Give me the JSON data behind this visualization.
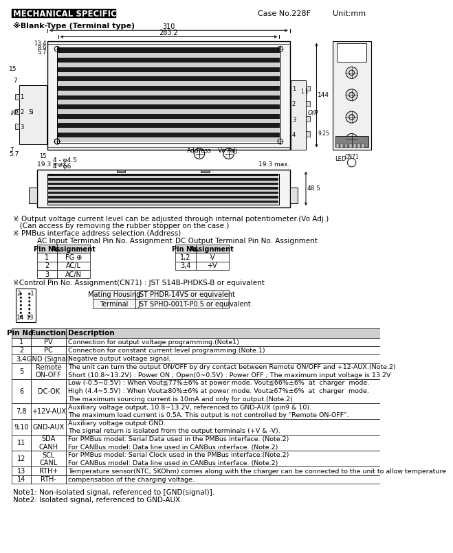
{
  "title": "MECHANICAL SPECIFICATION",
  "case_no": "Case No.228F",
  "unit": "Unit:mm",
  "blank_type": "※Blank-Type (Terminal type)",
  "notes": [
    "※ Output voltage current level can be adjusted through internal potentiometer.(Vo Adj.)",
    "   (Can access by removing the rubber stopper on the case.)",
    "※ PMBus interface address selection.(Address)"
  ],
  "ac_table_title": "AC Input Terminal Pin No. Assignment",
  "ac_table": [
    [
      "Pin No.",
      "Assignment"
    ],
    [
      "1",
      "FG ⊕"
    ],
    [
      "2",
      "AC/L"
    ],
    [
      "3",
      "AC/N"
    ]
  ],
  "dc_table_title": "DC Output Terminal Pin No. Assignment",
  "dc_table": [
    [
      "Pin No.",
      "Assignment"
    ],
    [
      "1,2",
      "-V"
    ],
    [
      "3,4",
      "+V"
    ]
  ],
  "control_note": "※Control Pin No. Assignment(CN71) : JST S14B-PHDKS-B or equivalent",
  "mating_table": [
    [
      "Mating Housing",
      "JST PHDR-14VS or equivalent"
    ],
    [
      "Terminal",
      "JST SPHD-001T-P0.5 or equivalent"
    ]
  ],
  "pin_table_headers": [
    "Pin No.",
    "Function",
    "Description"
  ],
  "pin_table": [
    [
      "1",
      "PV",
      "Connection for output voltage programming.(Note1)"
    ],
    [
      "2",
      "PC",
      "Connection for constant current level programming.(Note.1)"
    ],
    [
      "3,4",
      "GND (Signal)",
      "Negative output voltage signal."
    ],
    [
      "5",
      "Remote\nON-OFF",
      "The unit can turn the output ON/OFF by dry contact between Remote ON/OFF and +12-AUX.(Note.2)\nShort (10.8~13.2V) : Power ON ; Open(0~0.5V) : Power OFF ; The maximum input voltage is 13.2V"
    ],
    [
      "6",
      "DC-OK",
      "Low (-0.5~0.5V) : When Vout≦77%±6% at power mode. Vout≦66%±6%  at  charger  mode.\nHigh (4.4~5.5V) : When Vout≥80%±6% at power mode. Vout≥67%±6%  at  charger  mode.\nThe maximum sourcing current is 10mA and only for output.(Note.2)"
    ],
    [
      "7,8",
      "+12V-AUX",
      "Auxiliary voltage output, 10.8~13.2V, referenced to GND-AUX (pin9 & 10).\nThe maximum load current is 0.5A. This output is not controlled by \"Remote ON-OFF\"."
    ],
    [
      "9,10",
      "GND-AUX",
      "Auxiliary voltage output GND.\nThe signal return is isolated from the output terminals (+V & -V)."
    ],
    [
      "11",
      "SDA\nCANH",
      "For PMBus model: Serial Data used in the PMBus interface. (Note.2)\nFor CANBus model: Data line used in CANBus interface. (Note.2)"
    ],
    [
      "12",
      "SCL\nCANL",
      "For PMBus model: Serial Clock used in the PMBus interface.(Note.2)\nFor CANBus model: Data line used in CANBus interface. (Note.2)"
    ],
    [
      "13",
      "RTH+",
      "Temperature sensor(NTC, 5KOhm) comes along with the charger can be connected to the unit to allow temperature"
    ],
    [
      "14",
      "RTH-",
      "compensation of the charging voltage."
    ]
  ],
  "footnotes": [
    "Note1: Non-isolated signal, referenced to [GND(signal)].",
    "Note2: Isolated signal, referenced to GND-AUX."
  ],
  "bg_color": "#ffffff"
}
